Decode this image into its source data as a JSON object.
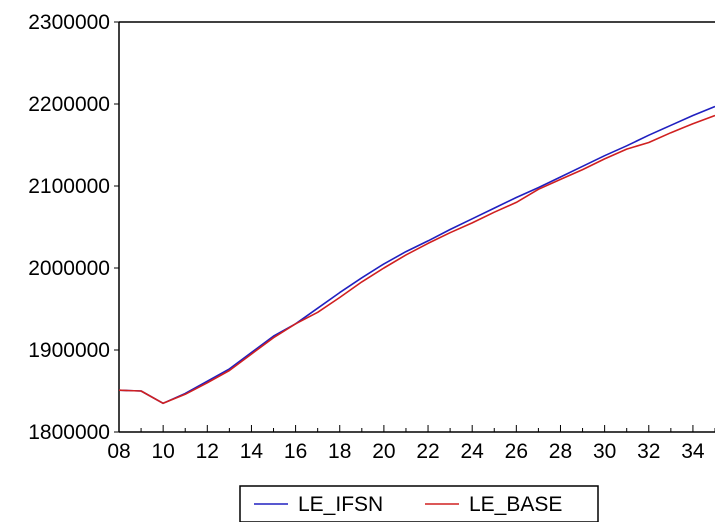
{
  "chart_data": {
    "type": "line",
    "title": "",
    "xlabel": "",
    "ylabel": "",
    "ylim": [
      1800000,
      2300000
    ],
    "xlim": [
      8,
      35
    ],
    "grid": false,
    "legend_position": "bottom-center",
    "x_tick_labels": [
      "08",
      "10",
      "12",
      "14",
      "16",
      "18",
      "20",
      "22",
      "24",
      "26",
      "28",
      "30",
      "32",
      "34"
    ],
    "x_tick_values": [
      8,
      10,
      12,
      14,
      16,
      18,
      20,
      22,
      24,
      26,
      28,
      30,
      32,
      34
    ],
    "y_tick_labels": [
      "1800000",
      "1900000",
      "2000000",
      "2100000",
      "2200000",
      "2300000"
    ],
    "y_tick_values": [
      1800000,
      1900000,
      2000000,
      2100000,
      2200000,
      2300000
    ],
    "x": [
      8,
      9,
      10,
      11,
      12,
      13,
      14,
      15,
      16,
      17,
      18,
      19,
      20,
      21,
      22,
      23,
      24,
      25,
      26,
      27,
      28,
      29,
      30,
      31,
      32,
      33,
      34,
      35
    ],
    "series": [
      {
        "name": "LE_IFSN",
        "color": "#2020c0",
        "values": [
          1851000,
          1850000,
          1835000,
          1847000,
          1862000,
          1877000,
          1897000,
          1917000,
          1932000,
          1951000,
          1970000,
          1988000,
          2005000,
          2020000,
          2033000,
          2047000,
          2060000,
          2073000,
          2086000,
          2098000,
          2111000,
          2124000,
          2137000,
          2149000,
          2162000,
          2174000,
          2186000,
          2197000
        ]
      },
      {
        "name": "LE_BASE",
        "color": "#d02020",
        "values": [
          1851000,
          1850000,
          1835000,
          1846000,
          1860000,
          1875000,
          1895000,
          1915000,
          1932000,
          1946000,
          1964000,
          1983000,
          2000000,
          2016000,
          2030000,
          2043000,
          2055000,
          2068000,
          2080000,
          2096000,
          2108000,
          2120000,
          2133000,
          2145000,
          2153000,
          2165000,
          2176000,
          2186000
        ]
      }
    ]
  }
}
